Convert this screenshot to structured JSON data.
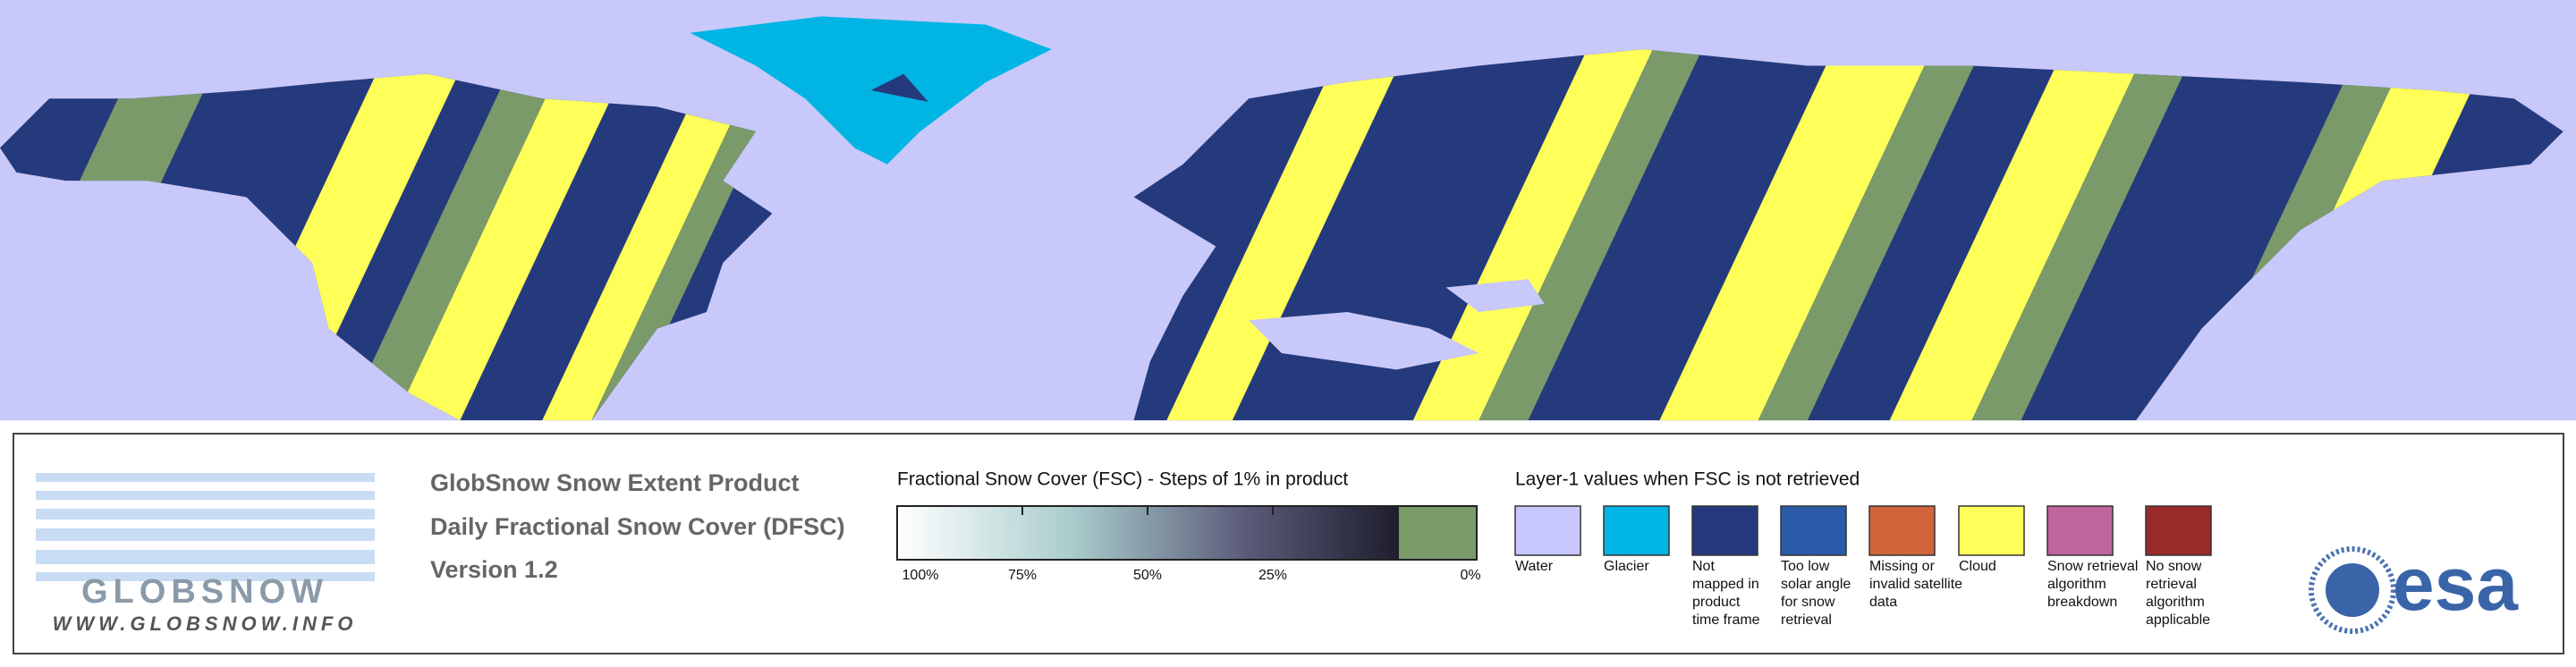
{
  "logo": {
    "name": "GLOBSNOW",
    "url": "WWW.GLOBSNOW.INFO"
  },
  "product": {
    "title": "GlobSnow Snow Extent Product",
    "subtitle": "Daily Fractional Snow Cover (DFSC)",
    "version": "Version 1.2"
  },
  "colorbar": {
    "title": "Fractional Snow Cover (FSC) - Steps of 1% in product",
    "ticks": [
      "100%",
      "75%",
      "50%",
      "25%",
      "0%"
    ]
  },
  "layer1": {
    "title": "Layer-1 values when FSC is not retrieved",
    "classes": [
      {
        "color": "#c8c8ff",
        "label": [
          "Water"
        ]
      },
      {
        "color": "#00b4e6",
        "label": [
          "Glacier"
        ]
      },
      {
        "color": "#253a7c",
        "label": [
          "Not",
          "mapped in",
          "product",
          "time frame"
        ]
      },
      {
        "color": "#2a5aa8",
        "label": [
          "Too low",
          "solar angle",
          "for snow",
          "retrieval"
        ]
      },
      {
        "color": "#d2643c",
        "label": [
          "Missing or",
          "invalid satellite",
          "data"
        ]
      },
      {
        "color": "#ffff5a",
        "label": [
          "Cloud"
        ]
      },
      {
        "color": "#c0649c",
        "label": [
          "Snow retrieval",
          "algorithm",
          "breakdown"
        ]
      },
      {
        "color": "#9a2a2a",
        "label": [
          "No snow",
          "retrieval",
          "algorithm",
          "applicable"
        ]
      }
    ]
  },
  "agency": "esa"
}
